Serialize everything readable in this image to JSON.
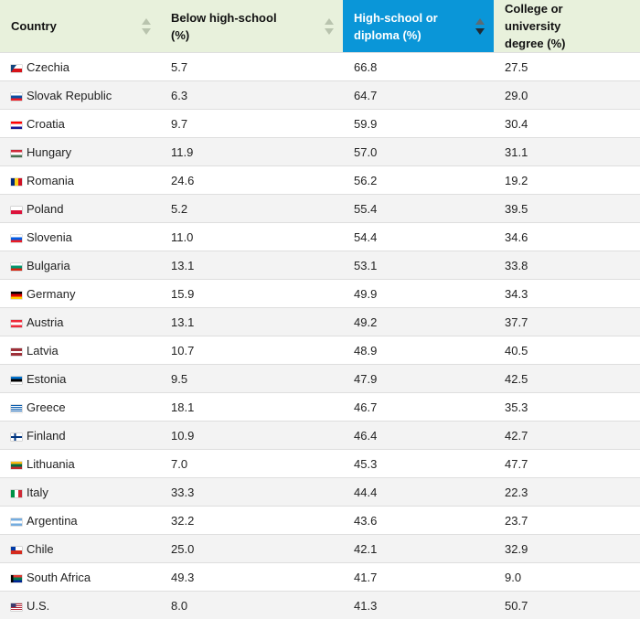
{
  "headers": {
    "country": "Country",
    "below": [
      "Below high-school",
      "(%)"
    ],
    "high": [
      "High-school or",
      "diploma (%)"
    ],
    "college": [
      "College or university",
      "degree (%)"
    ]
  },
  "sort": {
    "column": "High-school or diploma (%)",
    "direction": "descending"
  },
  "rows": [
    {
      "country": "Czechia",
      "below": "5.7",
      "high": "66.8",
      "college": "27.5",
      "flag": "CZ"
    },
    {
      "country": "Slovak Republic",
      "below": "6.3",
      "high": "64.7",
      "college": "29.0",
      "flag": "SK"
    },
    {
      "country": "Croatia",
      "below": "9.7",
      "high": "59.9",
      "college": "30.4",
      "flag": "HR"
    },
    {
      "country": "Hungary",
      "below": "11.9",
      "high": "57.0",
      "college": "31.1",
      "flag": "HU"
    },
    {
      "country": "Romania",
      "below": "24.6",
      "high": "56.2",
      "college": "19.2",
      "flag": "RO"
    },
    {
      "country": "Poland",
      "below": "5.2",
      "high": "55.4",
      "college": "39.5",
      "flag": "PL"
    },
    {
      "country": "Slovenia",
      "below": "11.0",
      "high": "54.4",
      "college": "34.6",
      "flag": "SI"
    },
    {
      "country": "Bulgaria",
      "below": "13.1",
      "high": "53.1",
      "college": "33.8",
      "flag": "BG"
    },
    {
      "country": "Germany",
      "below": "15.9",
      "high": "49.9",
      "college": "34.3",
      "flag": "DE"
    },
    {
      "country": "Austria",
      "below": "13.1",
      "high": "49.2",
      "college": "37.7",
      "flag": "AT"
    },
    {
      "country": "Latvia",
      "below": "10.7",
      "high": "48.9",
      "college": "40.5",
      "flag": "LV"
    },
    {
      "country": "Estonia",
      "below": "9.5",
      "high": "47.9",
      "college": "42.5",
      "flag": "EE"
    },
    {
      "country": "Greece",
      "below": "18.1",
      "high": "46.7",
      "college": "35.3",
      "flag": "GR"
    },
    {
      "country": "Finland",
      "below": "10.9",
      "high": "46.4",
      "college": "42.7",
      "flag": "FI"
    },
    {
      "country": "Lithuania",
      "below": "7.0",
      "high": "45.3",
      "college": "47.7",
      "flag": "LT"
    },
    {
      "country": "Italy",
      "below": "33.3",
      "high": "44.4",
      "college": "22.3",
      "flag": "IT"
    },
    {
      "country": "Argentina",
      "below": "32.2",
      "high": "43.6",
      "college": "23.7",
      "flag": "AR"
    },
    {
      "country": "Chile",
      "below": "25.0",
      "high": "42.1",
      "college": "32.9",
      "flag": "CL"
    },
    {
      "country": "South Africa",
      "below": "49.3",
      "high": "41.7",
      "college": "9.0",
      "flag": "ZA"
    },
    {
      "country": "U.S.",
      "below": "8.0",
      "high": "41.3",
      "college": "50.7",
      "flag": "US"
    }
  ]
}
